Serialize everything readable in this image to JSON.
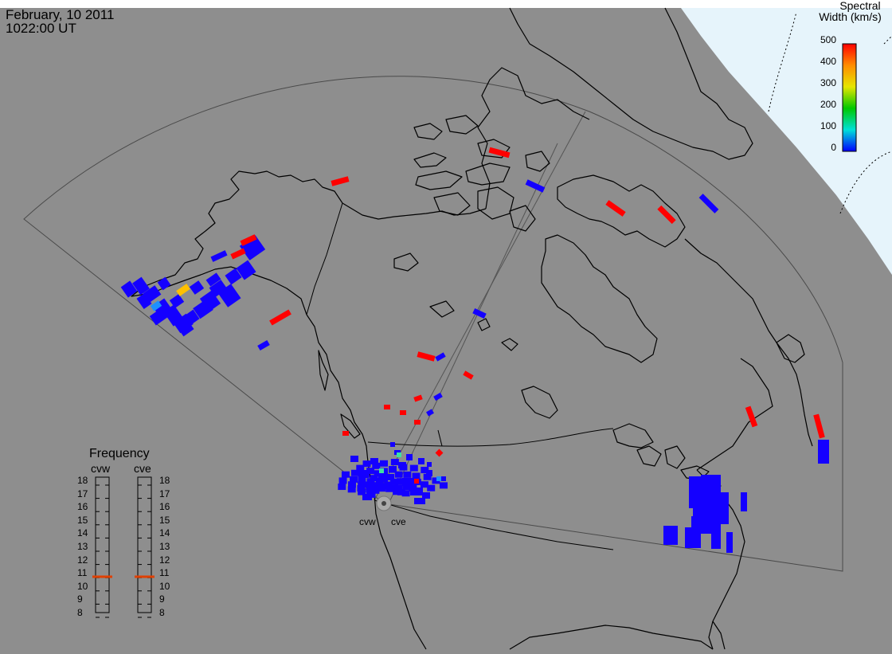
{
  "header": {
    "date": "February, 10 2011",
    "time": "1022:00 UT"
  },
  "colorbar": {
    "title_line1": "Spectral",
    "title_line2": "Width (km/s)",
    "ticks": [
      "500",
      "400",
      "300",
      "200",
      "100",
      "0"
    ],
    "min": 0,
    "max": 500
  },
  "frequency": {
    "title": "Frequency",
    "radars": [
      {
        "name": "cvw",
        "selected": 11
      },
      {
        "name": "cve",
        "selected": 11
      }
    ],
    "scale": [
      "18",
      "17",
      "16",
      "15",
      "14",
      "13",
      "12",
      "11",
      "10",
      "9",
      "8"
    ]
  },
  "radar_labels": [
    "cvw",
    "cve"
  ],
  "colors": {
    "ocean": "#8e8e8e",
    "polar_cap": "#e6f4fb",
    "coast": "#000000",
    "fov": "#4a4a4a",
    "low_width": "#1400ff",
    "high_width": "#ff0000",
    "freq_marker": "#e04000"
  }
}
